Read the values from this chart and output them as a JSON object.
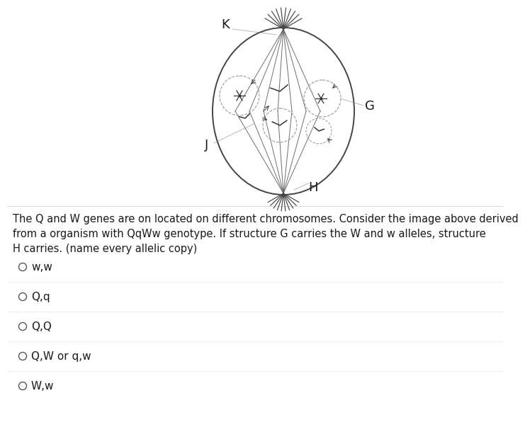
{
  "background_color": "#ffffff",
  "text_color": "#1a1a1a",
  "cell_color": "#333333",
  "question_text": "The Q and W genes are on located on different chromosomes. Consider the image above derived\nfrom a organism with QqWw genotype. If structure G carries the W and w alleles, structure\nH carries. (name every allelic copy)",
  "question_fontsize": 10.5,
  "options": [
    "w,w",
    "Q,q",
    "Q,Q",
    "Q,W or q,w",
    "W,w"
  ],
  "option_fontsize": 11,
  "label_K": {
    "text": "K",
    "fontsize": 13
  },
  "label_G": {
    "text": "G",
    "fontsize": 13
  },
  "label_J": {
    "text": "J",
    "fontsize": 13
  },
  "label_H": {
    "text": "H",
    "fontsize": 13
  }
}
